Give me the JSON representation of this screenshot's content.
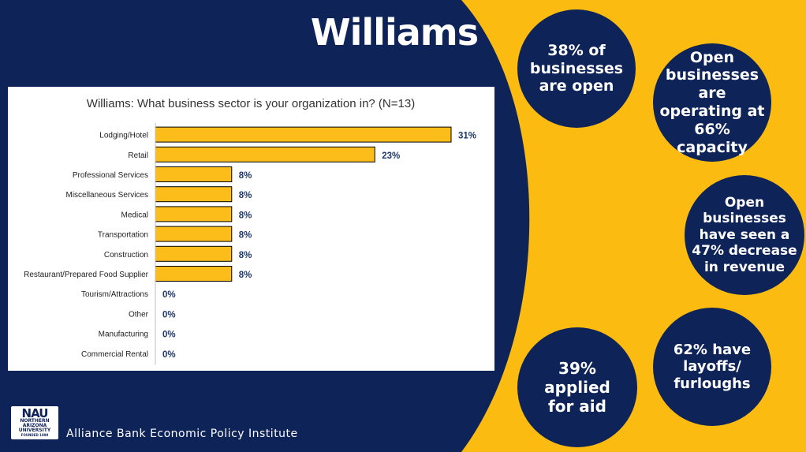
{
  "page": {
    "title": "Williams",
    "footer": "Alliance Bank Economic Policy Institute",
    "logo": {
      "main": "NAU",
      "lines": [
        "NORTHERN",
        "ARIZONA",
        "UNIVERSITY",
        "FOUNDED 1899"
      ]
    }
  },
  "stats": [
    {
      "id": "open",
      "lines": [
        "38% of",
        "businesses",
        "are open"
      ]
    },
    {
      "id": "capacity",
      "lines": [
        "Open",
        "businesses are",
        "operating at",
        "66% capacity"
      ]
    },
    {
      "id": "revenue",
      "lines": [
        "Open",
        "businesses",
        "have seen a",
        "47% decrease",
        "in revenue"
      ]
    },
    {
      "id": "layoffs",
      "lines": [
        "62% have",
        "layoffs/",
        "furloughs"
      ]
    },
    {
      "id": "aid",
      "lines": [
        "39%",
        "applied",
        "for aid"
      ]
    }
  ],
  "colors": {
    "navy": "#0e2358",
    "gold": "#fbbb11",
    "bar": "#fcbd1a",
    "label_value": "#1f3868"
  },
  "chart_data": {
    "type": "bar",
    "orientation": "horizontal",
    "title": "Williams: What business sector is your organization in? (N=13)",
    "categories": [
      "Lodging/Hotel",
      "Retail",
      "Professional Services",
      "Miscellaneous Services",
      "Medical",
      "Transportation",
      "Construction",
      "Restaurant/Prepared Food Supplier",
      "Tourism/Attractions",
      "Other",
      "Manufacturing",
      "Commercial Rental"
    ],
    "values": [
      31,
      23,
      8,
      8,
      8,
      8,
      8,
      8,
      0,
      0,
      0,
      0
    ],
    "value_labels": [
      "31%",
      "23%",
      "8%",
      "8%",
      "8%",
      "8%",
      "8%",
      "8%",
      "0%",
      "0%",
      "0%",
      "0%"
    ],
    "unit": "%",
    "xlim": [
      0,
      35
    ],
    "grid": false,
    "legend": "none"
  }
}
